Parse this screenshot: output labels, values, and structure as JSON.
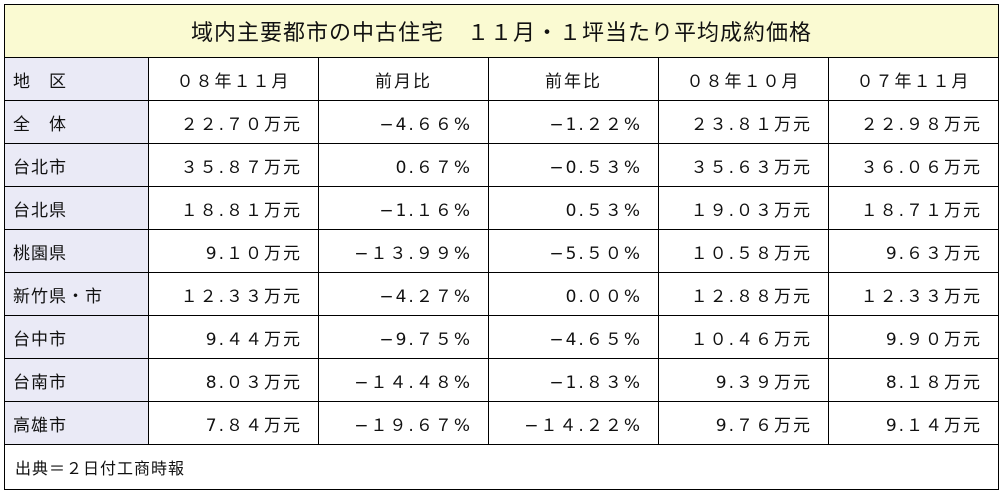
{
  "title": "域内主要都市の中古住宅　１１月・１坪当たり平均成約価格",
  "headers": [
    "地　区",
    "０８年１１月",
    "前月比",
    "前年比",
    "０８年１０月",
    "０７年１１月"
  ],
  "rows": [
    [
      "全　体",
      "２２.７０万元",
      "−4.６６%",
      "−1.２２%",
      "２３.８１万元",
      "２２.９８万元"
    ],
    [
      "台北市",
      "３５.８７万元",
      "0.６７%",
      "−0.５３%",
      "３５.６３万元",
      "３６.０６万元"
    ],
    [
      "台北県",
      "１８.８１万元",
      "−1.１６%",
      "0.５３%",
      "１９.０３万元",
      "１８.７１万元"
    ],
    [
      "桃園県",
      "9.１０万元",
      "−１３.９９%",
      "−5.５０%",
      "１０.５８万元",
      "9.６３万元"
    ],
    [
      "新竹県・市",
      "１２.３３万元",
      "−4.２７%",
      "0.００%",
      "１２.８８万元",
      "１２.３３万元"
    ],
    [
      "台中市",
      "9.４４万元",
      "−9.７５%",
      "−4.６５%",
      "１０.４６万元",
      "9.９０万元"
    ],
    [
      "台南市",
      "8.０３万元",
      "−１４.４８%",
      "−1.８３%",
      "9.３９万元",
      "8.１８万元"
    ],
    [
      "高雄市",
      "7.８４万元",
      "−１９.６７%",
      "−１４.２２%",
      "9.７６万元",
      "9.１４万元"
    ]
  ],
  "source": "出典＝２日付工商時報"
}
